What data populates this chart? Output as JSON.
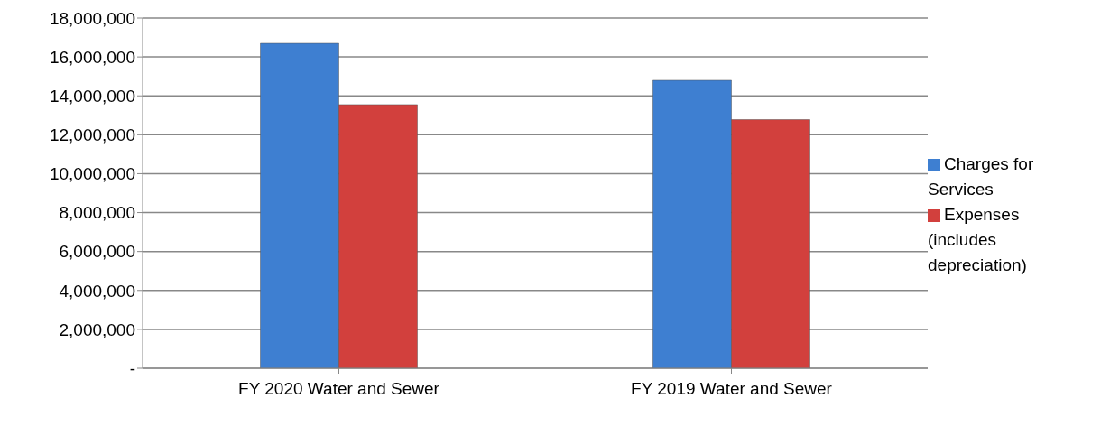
{
  "chart_data": {
    "type": "bar",
    "categories": [
      "FY 2020 Water and Sewer",
      "FY 2019 Water and Sewer"
    ],
    "series": [
      {
        "name": "Charges for Services",
        "color": "#3e7fd1",
        "values": [
          16700000,
          14800000
        ]
      },
      {
        "name": "Expenses (includes depreciation)",
        "color": "#d2403d",
        "values": [
          13550000,
          12780000
        ]
      }
    ],
    "ylim": [
      0,
      18000000
    ],
    "yticks": [
      {
        "value": 0,
        "label": "-"
      },
      {
        "value": 2000000,
        "label": "2,000,000"
      },
      {
        "value": 4000000,
        "label": "4,000,000"
      },
      {
        "value": 6000000,
        "label": "6,000,000"
      },
      {
        "value": 8000000,
        "label": "8,000,000"
      },
      {
        "value": 10000000,
        "label": "10,000,000"
      },
      {
        "value": 12000000,
        "label": "12,000,000"
      },
      {
        "value": 14000000,
        "label": "14,000,000"
      },
      {
        "value": 16000000,
        "label": "16,000,000"
      },
      {
        "value": 18000000,
        "label": "18,000,000"
      }
    ],
    "grid": "y",
    "legend": "right"
  }
}
